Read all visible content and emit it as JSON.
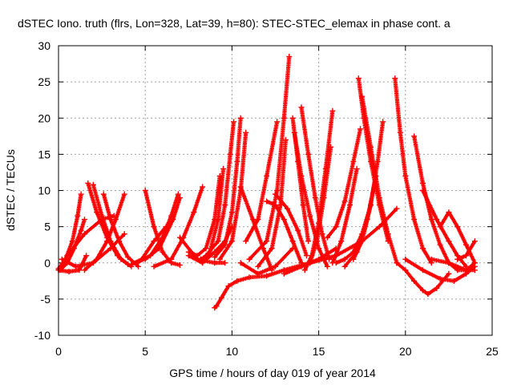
{
  "chart_data": {
    "type": "scatter",
    "title": "dSTEC Iono. truth (flrs, Lon=328, Lat=39, h=80): STEC-STEC_elemax in phase cont. a",
    "xlabel": "GPS time / hours of day 019 of year 2014",
    "ylabel": "dSTEC  / TECUs",
    "xlim": [
      0,
      25
    ],
    "ylim": [
      -10,
      30
    ],
    "xticks": [
      0,
      5,
      10,
      15,
      20,
      25
    ],
    "yticks": [
      -10,
      -5,
      0,
      5,
      10,
      15,
      20,
      25,
      30
    ],
    "grid": true,
    "marker": "+",
    "color": "#ff0000",
    "series": [
      {
        "x": [
          0.0,
          0.4,
          0.8,
          1.1,
          1.3
        ],
        "y": [
          -0.8,
          0.5,
          3.0,
          6.5,
          9.5
        ]
      },
      {
        "x": [
          0.1,
          0.5,
          0.9,
          1.3,
          1.5
        ],
        "y": [
          -1.0,
          0.0,
          2.0,
          4.5,
          6.0
        ]
      },
      {
        "x": [
          0.2,
          1.0,
          2.0,
          3.0,
          3.8
        ],
        "y": [
          0.5,
          -0.5,
          0.0,
          2.0,
          4.0
        ]
      },
      {
        "x": [
          0.0,
          0.6,
          1.2,
          1.6
        ],
        "y": [
          -1.0,
          -1.2,
          -1.0,
          1.0
        ]
      },
      {
        "x": [
          1.7,
          2.2,
          2.8,
          3.4,
          4.0
        ],
        "y": [
          11.0,
          7.0,
          3.5,
          1.0,
          -0.2
        ]
      },
      {
        "x": [
          2.0,
          2.5,
          3.0,
          3.6,
          4.2
        ],
        "y": [
          10.8,
          6.5,
          3.0,
          0.5,
          -0.5
        ]
      },
      {
        "x": [
          2.6,
          3.0,
          3.5,
          4.0,
          4.6
        ],
        "y": [
          9.5,
          6.0,
          3.0,
          0.8,
          -0.5
        ]
      },
      {
        "x": [
          1.5,
          2.2,
          2.8,
          3.3,
          3.8
        ],
        "y": [
          -1.0,
          0.5,
          3.0,
          6.0,
          9.5
        ]
      },
      {
        "x": [
          0.5,
          1.5,
          2.5,
          3.2
        ],
        "y": [
          1.0,
          4.0,
          6.0,
          6.5
        ]
      },
      {
        "x": [
          5.0,
          5.5,
          6.0,
          6.5,
          7.0
        ],
        "y": [
          10.0,
          5.0,
          1.5,
          0.0,
          -0.3
        ]
      },
      {
        "x": [
          4.5,
          5.3,
          6.0,
          6.5,
          6.9
        ],
        "y": [
          0.0,
          1.0,
          3.5,
          6.5,
          9.5
        ]
      },
      {
        "x": [
          5.0,
          5.8,
          6.6,
          7.0
        ],
        "y": [
          0.5,
          2.0,
          6.0,
          9.0
        ]
      },
      {
        "x": [
          5.5,
          6.5,
          7.2,
          7.8,
          8.3
        ],
        "y": [
          -0.5,
          0.5,
          3.5,
          7.0,
          10.5
        ]
      },
      {
        "x": [
          4.2,
          4.8,
          5.5,
          6.2
        ],
        "y": [
          -0.2,
          0.5,
          3.0,
          5.0
        ]
      },
      {
        "x": [
          7.5,
          8.0,
          8.5,
          9.0,
          9.3
        ],
        "y": [
          1.5,
          1.0,
          2.0,
          6.0,
          12.0
        ]
      },
      {
        "x": [
          7.5,
          8.3,
          9.0,
          9.6,
          10.0
        ],
        "y": [
          1.0,
          0.0,
          1.5,
          3.0,
          5.0
        ]
      },
      {
        "x": [
          8.2,
          8.7,
          9.2,
          9.5
        ],
        "y": [
          0.5,
          1.2,
          6.0,
          13.0
        ]
      },
      {
        "x": [
          7.0,
          8.0,
          9.0,
          9.6
        ],
        "y": [
          3.5,
          0.5,
          0.0,
          0.0
        ]
      },
      {
        "x": [
          8.5,
          9.2,
          9.6,
          9.9,
          10.1
        ],
        "y": [
          1.0,
          3.0,
          8.0,
          15.0,
          19.5
        ]
      },
      {
        "x": [
          9.0,
          9.6,
          10.0,
          10.3,
          10.5
        ],
        "y": [
          0.8,
          2.5,
          7.0,
          14.0,
          20.0
        ]
      },
      {
        "x": [
          9.3,
          10.0,
          10.5,
          10.8
        ],
        "y": [
          0.5,
          3.0,
          10.0,
          18.0
        ]
      },
      {
        "x": [
          9.0,
          9.1,
          9.4,
          9.8,
          10.3,
          11.0,
          12.0,
          13.0,
          14.5,
          16.0,
          17.5,
          18.5,
          19.5
        ],
        "y": [
          -6.2,
          -6.0,
          -4.8,
          -3.2,
          -2.5,
          -2.0,
          -1.8,
          -1.0,
          0.0,
          1.0,
          3.0,
          5.0,
          7.5
        ]
      },
      {
        "x": [
          10.5,
          11.2,
          11.8,
          12.3
        ],
        "y": [
          10.5,
          6.0,
          2.0,
          -1.0
        ]
      },
      {
        "x": [
          10.8,
          11.5,
          12.0,
          12.6
        ],
        "y": [
          3.0,
          6.0,
          12.0,
          19.5
        ]
      },
      {
        "x": [
          10.5,
          11.5,
          12.5,
          13.5
        ],
        "y": [
          0.0,
          -1.5,
          -0.5,
          2.0
        ]
      },
      {
        "x": [
          11.0,
          12.0,
          12.6,
          13.0,
          13.3
        ],
        "y": [
          0.5,
          3.0,
          10.0,
          20.0,
          28.5
        ]
      },
      {
        "x": [
          11.5,
          12.3,
          12.8,
          13.1
        ],
        "y": [
          -0.5,
          2.0,
          8.0,
          17.0
        ]
      },
      {
        "x": [
          12.0,
          12.5,
          13.0,
          13.5,
          14.0
        ],
        "y": [
          8.5,
          8.0,
          6.0,
          3.0,
          0.0
        ]
      },
      {
        "x": [
          12.5,
          13.2,
          13.8,
          14.3
        ],
        "y": [
          9.5,
          7.5,
          4.5,
          1.0
        ]
      },
      {
        "x": [
          13.5,
          13.8,
          14.1,
          14.4
        ],
        "y": [
          20.0,
          14.0,
          8.0,
          3.0
        ]
      },
      {
        "x": [
          13.6,
          14.0,
          14.5,
          15.0,
          15.5
        ],
        "y": [
          18.0,
          12.0,
          6.5,
          2.0,
          -0.5
        ]
      },
      {
        "x": [
          14.0,
          14.4,
          14.8,
          15.2,
          15.6
        ],
        "y": [
          21.5,
          15.0,
          9.0,
          4.0,
          0.5
        ]
      },
      {
        "x": [
          14.2,
          14.6,
          15.0,
          15.4,
          15.8
        ],
        "y": [
          -1.0,
          1.0,
          5.5,
          13.0,
          21.0
        ]
      },
      {
        "x": [
          14.5,
          14.9,
          15.3,
          15.7
        ],
        "y": [
          0.0,
          3.0,
          9.0,
          16.0
        ]
      },
      {
        "x": [
          13.0,
          14.0,
          15.0,
          16.0
        ],
        "y": [
          -1.5,
          -0.5,
          0.5,
          2.0
        ]
      },
      {
        "x": [
          15.5,
          16.0,
          16.5,
          17.0,
          17.4
        ],
        "y": [
          3.5,
          5.0,
          8.5,
          14.0,
          18.5
        ]
      },
      {
        "x": [
          15.8,
          16.3,
          16.8,
          17.2
        ],
        "y": [
          0.0,
          3.0,
          8.0,
          13.0
        ]
      },
      {
        "x": [
          16.0,
          16.5,
          17.0,
          17.5,
          18.0
        ],
        "y": [
          0.0,
          0.5,
          1.5,
          4.0,
          8.0
        ]
      },
      {
        "x": [
          17.3,
          17.6,
          18.0,
          18.5,
          19.0
        ],
        "y": [
          25.5,
          20.0,
          14.0,
          8.0,
          3.0
        ]
      },
      {
        "x": [
          17.5,
          18.0,
          18.5,
          19.0,
          19.5
        ],
        "y": [
          23.0,
          16.0,
          9.0,
          4.0,
          0.0
        ]
      },
      {
        "x": [
          17.0,
          17.5,
          18.0,
          18.4,
          18.7
        ],
        "y": [
          0.5,
          3.0,
          8.0,
          14.0,
          19.5
        ]
      },
      {
        "x": [
          16.5,
          17.2,
          17.8,
          18.3
        ],
        "y": [
          -0.5,
          1.5,
          6.0,
          12.0
        ]
      },
      {
        "x": [
          19.4,
          19.7,
          20.0,
          20.5,
          21.0,
          21.5
        ],
        "y": [
          25.5,
          18.0,
          12.0,
          6.0,
          2.0,
          0.0
        ]
      },
      {
        "x": [
          20.5,
          21.0,
          21.5,
          22.0,
          22.5
        ],
        "y": [
          17.5,
          11.0,
          6.0,
          2.5,
          0.0
        ]
      },
      {
        "x": [
          19.5,
          20.0,
          20.5,
          21.0,
          21.3,
          21.8,
          22.5
        ],
        "y": [
          0.0,
          -1.0,
          -2.5,
          -3.8,
          -4.3,
          -3.5,
          -1.5
        ]
      },
      {
        "x": [
          20.0,
          21.0,
          22.0,
          22.8,
          23.5,
          24.0
        ],
        "y": [
          0.5,
          -1.0,
          -2.2,
          -2.5,
          -1.5,
          -0.5
        ]
      },
      {
        "x": [
          21.0,
          21.8,
          22.5,
          23.0,
          23.5
        ],
        "y": [
          10.0,
          6.0,
          3.0,
          1.0,
          -0.5
        ]
      },
      {
        "x": [
          22.0,
          22.5,
          23.0,
          23.5,
          24.0
        ],
        "y": [
          5.0,
          7.0,
          5.0,
          2.5,
          0.0
        ]
      },
      {
        "x": [
          22.5,
          23.0,
          23.5,
          24.0
        ],
        "y": [
          0.0,
          -1.0,
          -1.0,
          0.0
        ]
      },
      {
        "x": [
          23.0,
          23.5,
          24.0
        ],
        "y": [
          0.5,
          1.0,
          3.0
        ]
      },
      {
        "x": [
          21.5,
          22.5,
          23.5,
          24.0
        ],
        "y": [
          0.5,
          0.0,
          -1.0,
          -1.0
        ]
      }
    ]
  }
}
